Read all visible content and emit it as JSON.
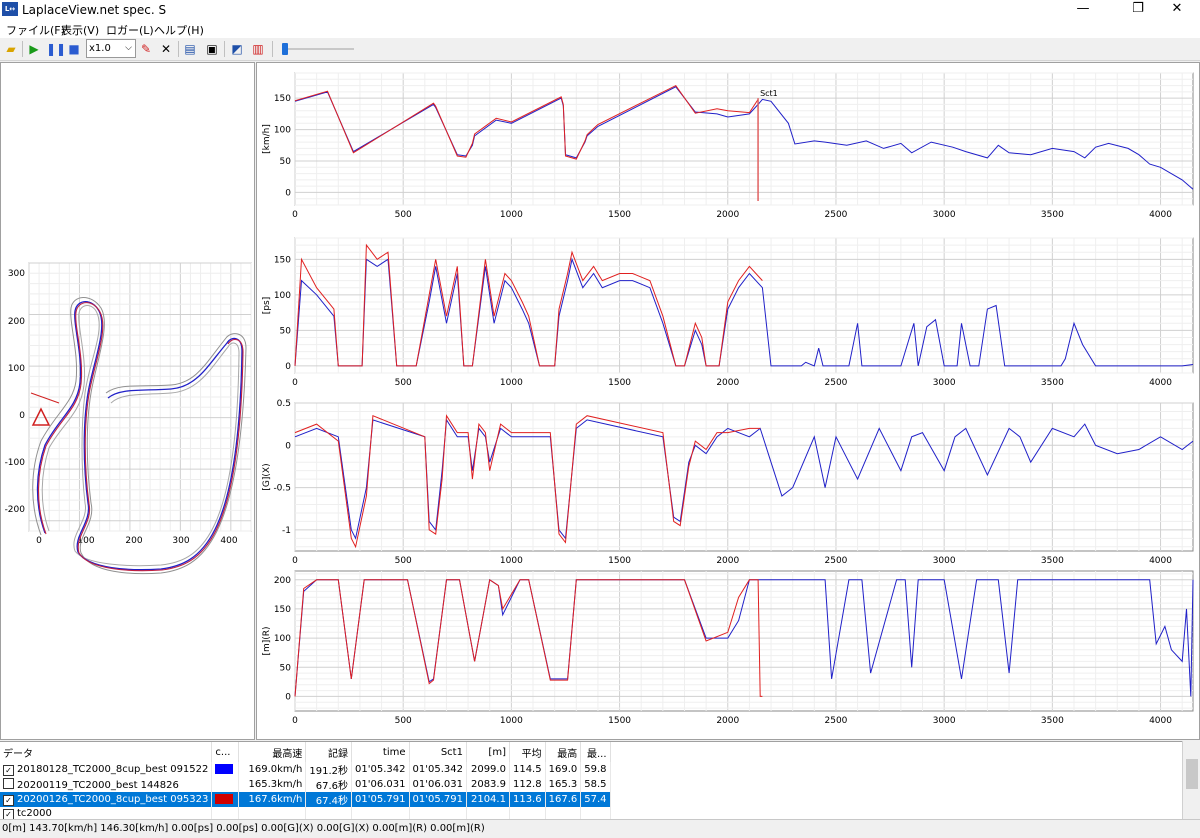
{
  "window": {
    "title": "LaplaceView.net spec. S",
    "app_icon": "L↔",
    "minimize": "—",
    "maximize": "❐",
    "close": "✕"
  },
  "menu": [
    "ファイル(F)",
    "表示(V)",
    "ロガー(L)",
    "ヘルプ(H)"
  ],
  "toolbar": {
    "speed": "x1.0",
    "icons": [
      "open-folder-icon",
      "play-icon",
      "pause-icon",
      "stop-icon",
      "speed-select",
      "pen-icon",
      "delete-icon",
      "export-icon",
      "number-icon",
      "chart-icon",
      "pdf-icon"
    ]
  },
  "colors": {
    "blue": "#2020c8",
    "red": "#e02020",
    "grid": "#d8d8d8",
    "selected": "#0078d7"
  },
  "map": {
    "xticks": [
      "0",
      "100",
      "200",
      "300",
      "400"
    ],
    "yticks": [
      "300",
      "200",
      "100",
      "0",
      "-100",
      "-200"
    ]
  },
  "chart_data": [
    {
      "type": "line",
      "ylabel": "[km/h]",
      "xlim": [
        0,
        4150
      ],
      "ylim": [
        -20,
        190
      ],
      "yticks": [
        0,
        50,
        100,
        150
      ],
      "xticks": [
        0,
        500,
        1000,
        1500,
        2000,
        2500,
        3000,
        3500,
        4000
      ],
      "annotation": "Sct1",
      "series": [
        {
          "color": "blue",
          "x": [
            0,
            150,
            270,
            640,
            650,
            750,
            790,
            820,
            830,
            930,
            1000,
            1230,
            1240,
            1250,
            1300,
            1340,
            1350,
            1400,
            1760,
            1850,
            1950,
            2000,
            2100,
            2140,
            2160,
            2200,
            2280,
            2310,
            2400,
            2450,
            2550,
            2640,
            2720,
            2800,
            2850,
            2940,
            3040,
            3100,
            3200,
            3250,
            3300,
            3400,
            3500,
            3600,
            3650,
            3700,
            3760,
            3850,
            3900,
            3950,
            4000,
            4100,
            4150
          ],
          "y": [
            145,
            160,
            65,
            140,
            135,
            60,
            58,
            75,
            90,
            115,
            110,
            150,
            138,
            60,
            55,
            80,
            90,
            105,
            168,
            128,
            125,
            120,
            125,
            140,
            148,
            145,
            110,
            77,
            82,
            80,
            75,
            82,
            70,
            78,
            63,
            80,
            72,
            65,
            55,
            75,
            63,
            60,
            70,
            65,
            55,
            72,
            78,
            70,
            60,
            45,
            40,
            20,
            5
          ]
        },
        {
          "color": "red",
          "x": [
            0,
            150,
            270,
            640,
            650,
            750,
            790,
            820,
            830,
            930,
            1000,
            1230,
            1240,
            1250,
            1300,
            1340,
            1350,
            1400,
            1760,
            1850,
            1950,
            2000,
            2100,
            2140
          ],
          "y": [
            146,
            161,
            63,
            142,
            137,
            58,
            56,
            78,
            93,
            118,
            112,
            152,
            140,
            58,
            53,
            82,
            92,
            108,
            170,
            126,
            133,
            130,
            127,
            148
          ]
        }
      ]
    },
    {
      "type": "line",
      "ylabel": "[ps]",
      "xlim": [
        0,
        4150
      ],
      "ylim": [
        -10,
        180
      ],
      "yticks": [
        0,
        50,
        100,
        150
      ],
      "xticks": [
        0,
        500,
        1000,
        1500,
        2000,
        2500,
        3000,
        3500,
        4000
      ],
      "series": [
        {
          "color": "blue",
          "x": [
            0,
            30,
            100,
            180,
            200,
            260,
            310,
            330,
            380,
            430,
            470,
            540,
            560,
            620,
            650,
            700,
            750,
            780,
            820,
            880,
            920,
            970,
            1000,
            1050,
            1080,
            1130,
            1200,
            1220,
            1260,
            1280,
            1330,
            1380,
            1420,
            1500,
            1560,
            1640,
            1700,
            1760,
            1800,
            1850,
            1880,
            1900,
            1960,
            2000,
            2050,
            2100,
            2160,
            2200,
            2250,
            2300,
            2340,
            2360,
            2400,
            2420,
            2440,
            2500,
            2560,
            2600,
            2620,
            2700,
            2720,
            2740,
            2800,
            2840,
            2860,
            2880,
            2920,
            2960,
            3000,
            3060,
            3080,
            3120,
            3160,
            3200,
            3240,
            3280,
            3300,
            3340,
            3380,
            3420,
            3500,
            3540,
            3560,
            3600,
            3640,
            3700,
            3760,
            3800,
            3850,
            3900,
            3950,
            4000,
            4100,
            4150
          ],
          "y": [
            0,
            120,
            100,
            70,
            0,
            0,
            0,
            150,
            140,
            150,
            0,
            0,
            0,
            90,
            140,
            60,
            130,
            0,
            0,
            140,
            60,
            120,
            110,
            80,
            60,
            0,
            0,
            70,
            120,
            150,
            110,
            130,
            110,
            120,
            120,
            110,
            60,
            0,
            0,
            50,
            30,
            0,
            0,
            80,
            110,
            130,
            110,
            0,
            0,
            0,
            0,
            5,
            0,
            25,
            0,
            0,
            0,
            60,
            0,
            0,
            0,
            0,
            0,
            40,
            60,
            0,
            55,
            65,
            0,
            0,
            60,
            0,
            0,
            80,
            85,
            0,
            0,
            0,
            0,
            0,
            0,
            0,
            10,
            60,
            30,
            0,
            0,
            0,
            0,
            0,
            0,
            0,
            0,
            2
          ]
        },
        {
          "color": "red",
          "x": [
            0,
            30,
            100,
            180,
            200,
            260,
            310,
            330,
            380,
            430,
            470,
            540,
            560,
            620,
            650,
            700,
            750,
            780,
            820,
            880,
            920,
            970,
            1000,
            1050,
            1080,
            1130,
            1200,
            1220,
            1260,
            1280,
            1330,
            1380,
            1420,
            1500,
            1560,
            1640,
            1700,
            1760,
            1800,
            1850,
            1880,
            1900,
            1960,
            2000,
            2050,
            2100,
            2160
          ],
          "y": [
            0,
            150,
            110,
            80,
            0,
            0,
            0,
            170,
            150,
            160,
            0,
            0,
            0,
            100,
            150,
            70,
            140,
            0,
            0,
            150,
            70,
            130,
            120,
            90,
            70,
            0,
            0,
            80,
            130,
            160,
            120,
            140,
            120,
            130,
            130,
            120,
            70,
            0,
            0,
            60,
            40,
            0,
            0,
            90,
            120,
            140,
            120
          ]
        }
      ]
    },
    {
      "type": "line",
      "ylabel": "[G](X)",
      "xlim": [
        0,
        4150
      ],
      "ylim": [
        -1.25,
        0.5
      ],
      "yticks": [
        -1,
        -0.5,
        0,
        0.5
      ],
      "xticks": [
        0,
        500,
        1000,
        1500,
        2000,
        2500,
        3000,
        3500,
        4000
      ],
      "series": [
        {
          "color": "blue",
          "x": [
            0,
            100,
            200,
            260,
            280,
            330,
            360,
            600,
            620,
            650,
            680,
            700,
            750,
            800,
            820,
            850,
            880,
            900,
            950,
            1000,
            1100,
            1180,
            1220,
            1250,
            1300,
            1350,
            1700,
            1750,
            1780,
            1820,
            1850,
            1900,
            1950,
            2000,
            2100,
            2150,
            2200,
            2250,
            2300,
            2400,
            2450,
            2500,
            2600,
            2700,
            2800,
            2850,
            2900,
            3000,
            3050,
            3100,
            3200,
            3300,
            3350,
            3400,
            3500,
            3600,
            3650,
            3700,
            3800,
            3900,
            4000,
            4100,
            4150
          ],
          "y": [
            0.1,
            0.2,
            0.1,
            -1.0,
            -1.1,
            -0.5,
            0.3,
            0.1,
            -0.9,
            -1.0,
            -0.3,
            0.3,
            0.1,
            0.1,
            -0.3,
            0.2,
            0.1,
            -0.2,
            0.2,
            0.1,
            0.1,
            0.1,
            -1.0,
            -1.1,
            0.2,
            0.3,
            0.1,
            -0.85,
            -0.9,
            -0.2,
            0.0,
            -0.1,
            0.1,
            0.2,
            0.1,
            0.2,
            -0.2,
            -0.6,
            -0.5,
            0.1,
            -0.5,
            0.1,
            -0.4,
            0.2,
            -0.3,
            0.1,
            0.15,
            -0.3,
            0.1,
            0.2,
            -0.35,
            0.2,
            0.1,
            -0.2,
            0.2,
            0.1,
            0.25,
            0.0,
            -0.1,
            -0.05,
            0.1,
            -0.05,
            0.05
          ]
        },
        {
          "color": "red",
          "x": [
            0,
            100,
            200,
            260,
            280,
            330,
            360,
            600,
            620,
            650,
            680,
            700,
            750,
            800,
            820,
            850,
            880,
            900,
            950,
            1000,
            1100,
            1180,
            1220,
            1250,
            1300,
            1350,
            1700,
            1750,
            1780,
            1820,
            1850,
            1900,
            1950,
            2000,
            2100,
            2150
          ],
          "y": [
            0.15,
            0.25,
            0.05,
            -1.1,
            -1.2,
            -0.6,
            0.35,
            0.1,
            -1.0,
            -1.05,
            -0.4,
            0.35,
            0.15,
            0.15,
            -0.4,
            0.25,
            0.15,
            -0.3,
            0.25,
            0.15,
            0.15,
            0.15,
            -1.05,
            -1.15,
            0.25,
            0.35,
            0.15,
            -0.9,
            -0.95,
            -0.25,
            0.05,
            -0.05,
            0.15,
            0.15,
            0.2,
            0.2
          ]
        }
      ]
    },
    {
      "type": "line",
      "ylabel": "[m](R)",
      "xlim": [
        0,
        4150
      ],
      "ylim": [
        -25,
        215
      ],
      "yticks": [
        0,
        50,
        100,
        150,
        200
      ],
      "xticks": [
        0,
        500,
        1000,
        1500,
        2000,
        2500,
        3000,
        3500,
        4000
      ],
      "series": [
        {
          "color": "blue",
          "x": [
            0,
            40,
            100,
            200,
            260,
            320,
            370,
            520,
            620,
            640,
            700,
            760,
            830,
            900,
            940,
            960,
            1040,
            1080,
            1180,
            1260,
            1300,
            1350,
            1370,
            1800,
            1900,
            2000,
            2050,
            2100,
            2160,
            2220,
            2400,
            2450,
            2480,
            2560,
            2620,
            2660,
            2780,
            2820,
            2850,
            2880,
            2950,
            3000,
            3080,
            3150,
            3250,
            3300,
            3340,
            3400,
            3500,
            3600,
            3700,
            3950,
            3980,
            4020,
            4050,
            4100,
            4120,
            4140,
            4150
          ],
          "y": [
            0,
            180,
            200,
            200,
            30,
            200,
            200,
            200,
            25,
            30,
            200,
            200,
            60,
            200,
            190,
            140,
            200,
            200,
            30,
            30,
            200,
            200,
            200,
            200,
            100,
            100,
            130,
            200,
            200,
            200,
            200,
            200,
            30,
            200,
            200,
            40,
            200,
            200,
            50,
            200,
            200,
            200,
            30,
            200,
            200,
            40,
            200,
            200,
            200,
            200,
            200,
            200,
            90,
            120,
            80,
            60,
            150,
            0,
            200
          ]
        },
        {
          "color": "red",
          "x": [
            0,
            40,
            100,
            200,
            260,
            320,
            370,
            520,
            620,
            640,
            700,
            760,
            830,
            900,
            940,
            960,
            1040,
            1080,
            1180,
            1260,
            1300,
            1350,
            1370,
            1800,
            1900,
            2000,
            2050,
            2100,
            2140,
            2150,
            2160
          ],
          "y": [
            0,
            185,
            200,
            200,
            30,
            200,
            200,
            200,
            22,
            28,
            200,
            200,
            60,
            200,
            190,
            150,
            200,
            200,
            28,
            28,
            200,
            200,
            200,
            200,
            95,
            110,
            170,
            200,
            200,
            0,
            0
          ]
        }
      ]
    }
  ],
  "table": {
    "headers": [
      "データ",
      "c...",
      "最高速",
      "記録",
      "time",
      "Sct1",
      "[m]",
      "平均",
      "最高",
      "最..."
    ],
    "rows": [
      {
        "checked": true,
        "name": "20180128_TC2000_8cup_best 091522",
        "swatch": "#0000ff",
        "maxspeed": "169.0km/h",
        "record": "191.2秒",
        "time": "01'05.342",
        "sct1": "01'05.342",
        "m": "2099.0",
        "avg": "114.5",
        "max": "169.0",
        "min": "59.8"
      },
      {
        "checked": false,
        "name": "20200119_TC2000_best 144826",
        "swatch": "",
        "maxspeed": "165.3km/h",
        "record": "67.6秒",
        "time": "01'06.031",
        "sct1": "01'06.031",
        "m": "2083.9",
        "avg": "112.8",
        "max": "165.3",
        "min": "58.5"
      },
      {
        "checked": true,
        "name": "20200126_TC2000_8cup_best 095323",
        "swatch": "#d00000",
        "maxspeed": "167.6km/h",
        "record": "67.4秒",
        "time": "01'05.791",
        "sct1": "01'05.791",
        "m": "2104.1",
        "avg": "113.6",
        "max": "167.6",
        "min": "57.4"
      },
      {
        "checked": true,
        "name": "tc2000",
        "swatch": "",
        "maxspeed": "",
        "record": "",
        "time": "",
        "sct1": "",
        "m": "",
        "avg": "",
        "max": "",
        "min": ""
      }
    ]
  },
  "status": "0[m]  143.70[km/h]  146.30[km/h]  0.00[ps]  0.00[ps]  0.00[G](X)  0.00[G](X)  0.00[m](R)  0.00[m](R)"
}
